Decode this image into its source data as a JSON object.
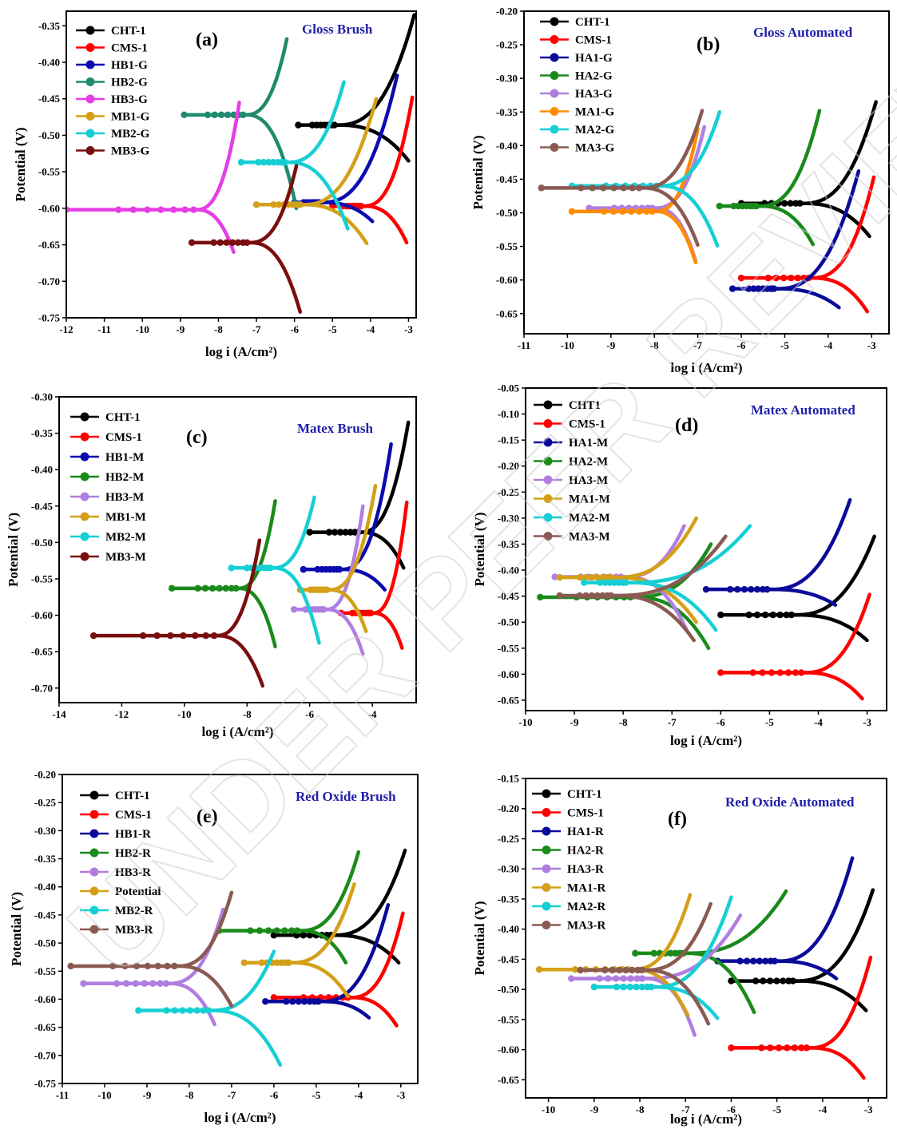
{
  "watermark": "UNDER PEER REVIEW",
  "colors": {
    "CHT": "#000000",
    "CMS": "#ff0000",
    "x1": "#0b0bb0",
    "x2": "#1a8a1a",
    "x3": "#b07ee0",
    "m1": "#d4a017",
    "m2": "#16cfd4",
    "m3": "#7a1f1f",
    "teal": "#1f8a6e",
    "magenta": "#e63ce6",
    "brown": "#8a5a52",
    "orange": "#ff8c00",
    "navy": "#0a0a9a",
    "green2": "#1a8a1a",
    "darkred": "#7a0e0e"
  },
  "chart_data": [
    {
      "id": "a",
      "type": "line",
      "panel_label": "(a)",
      "title": "Gloss Brush",
      "xlabel": "log i (A/cm²)",
      "ylabel": "Potential (V)",
      "xlim": [
        -12,
        -2.8
      ],
      "ylim": [
        -0.75,
        -0.33
      ],
      "xticks": [
        -12,
        -11,
        -10,
        -9,
        -8,
        -7,
        -6,
        -5,
        -4,
        -3
      ],
      "yticks": [
        -0.75,
        -0.7,
        -0.65,
        -0.6,
        -0.55,
        -0.5,
        -0.45,
        -0.4,
        -0.35
      ],
      "series": [
        {
          "name": "CHT-1",
          "color": "#000000",
          "ecorr": -0.486,
          "icorr": -4.9,
          "xstart": -5.9,
          "anode_end": [
            -2.85,
            -0.335
          ],
          "cathode_end": [
            -3.0,
            -0.535
          ]
        },
        {
          "name": "CMS-1",
          "color": "#ff0000",
          "ecorr": -0.597,
          "icorr": -4.2,
          "xstart": -5.0,
          "anode_end": [
            -2.9,
            -0.448
          ],
          "cathode_end": [
            -3.05,
            -0.647
          ]
        },
        {
          "name": "HB1-G",
          "color": "#0b0bb0",
          "ecorr": -0.592,
          "icorr": -5.3,
          "xstart": -6.0,
          "anode_end": [
            -3.3,
            -0.418
          ],
          "cathode_end": [
            -3.95,
            -0.618
          ]
        },
        {
          "name": "HB2-G",
          "color": "#1f8a6e",
          "ecorr": -0.472,
          "icorr": -7.3,
          "xstart": -8.9,
          "anode_end": [
            -6.2,
            -0.368
          ],
          "cathode_end": [
            -5.95,
            -0.6
          ]
        },
        {
          "name": "HB3-G",
          "color": "#e63ce6",
          "ecorr": -0.602,
          "icorr": -8.6,
          "xstart": -12.0,
          "anode_end": [
            -7.45,
            -0.455
          ],
          "cathode_end": [
            -7.6,
            -0.66
          ]
        },
        {
          "name": "MB1-G",
          "color": "#d4a017",
          "ecorr": -0.595,
          "icorr": -5.8,
          "xstart": -7.0,
          "anode_end": [
            -3.85,
            -0.45
          ],
          "cathode_end": [
            -4.1,
            -0.648
          ]
        },
        {
          "name": "MB2-G",
          "color": "#16cfd4",
          "ecorr": -0.537,
          "icorr": -6.2,
          "xstart": -7.4,
          "anode_end": [
            -4.7,
            -0.427
          ],
          "cathode_end": [
            -4.6,
            -0.628
          ]
        },
        {
          "name": "MB3-G",
          "color": "#7a0e0e",
          "ecorr": -0.647,
          "icorr": -7.2,
          "xstart": -8.7,
          "anode_end": [
            -5.95,
            -0.542
          ],
          "cathode_end": [
            -5.85,
            -0.742
          ]
        }
      ]
    },
    {
      "id": "b",
      "type": "line",
      "panel_label": "(b)",
      "title": "Gloss Automated",
      "xlabel": "log i (A/cm²)",
      "ylabel": "Potential (V)",
      "xlim": [
        -11,
        -2.6
      ],
      "ylim": [
        -0.68,
        -0.2
      ],
      "xticks": [
        -11,
        -10,
        -9,
        -8,
        -7,
        -6,
        -5,
        -4,
        -3
      ],
      "yticks": [
        -0.65,
        -0.6,
        -0.55,
        -0.5,
        -0.45,
        -0.4,
        -0.35,
        -0.3,
        -0.25,
        -0.2
      ],
      "series": [
        {
          "name": "CHT-1",
          "color": "#000000",
          "ecorr": -0.486,
          "icorr": -4.6,
          "xstart": -6.0,
          "anode_end": [
            -2.9,
            -0.335
          ],
          "cathode_end": [
            -3.05,
            -0.535
          ]
        },
        {
          "name": "CMS-1",
          "color": "#ff0000",
          "ecorr": -0.597,
          "icorr": -4.4,
          "xstart": -6.0,
          "anode_end": [
            -2.95,
            -0.447
          ],
          "cathode_end": [
            -3.1,
            -0.647
          ]
        },
        {
          "name": "HA1-G",
          "color": "#0a0a9a",
          "ecorr": -0.613,
          "icorr": -5.2,
          "xstart": -6.2,
          "anode_end": [
            -3.3,
            -0.438
          ],
          "cathode_end": [
            -3.75,
            -0.641
          ]
        },
        {
          "name": "HA2-G",
          "color": "#1a8a1a",
          "ecorr": -0.49,
          "icorr": -5.6,
          "xstart": -6.5,
          "anode_end": [
            -4.2,
            -0.348
          ],
          "cathode_end": [
            -4.35,
            -0.547
          ]
        },
        {
          "name": "HA3-G",
          "color": "#b07ee0",
          "ecorr": -0.493,
          "icorr": -8.0,
          "xstart": -9.5,
          "anode_end": [
            -6.85,
            -0.372
          ],
          "cathode_end": [
            -7.05,
            -0.572
          ]
        },
        {
          "name": "MA1-G",
          "color": "#ff8c00",
          "ecorr": -0.498,
          "icorr": -8.0,
          "xstart": -9.9,
          "anode_end": [
            -7.0,
            -0.375
          ],
          "cathode_end": [
            -7.05,
            -0.574
          ]
        },
        {
          "name": "MA2-G",
          "color": "#16cfd4",
          "ecorr": -0.46,
          "icorr": -7.9,
          "xstart": -9.9,
          "anode_end": [
            -6.5,
            -0.35
          ],
          "cathode_end": [
            -6.55,
            -0.549
          ]
        },
        {
          "name": "MA3-G",
          "color": "#8a5a52",
          "ecorr": -0.463,
          "icorr": -8.3,
          "xstart": -10.6,
          "anode_end": [
            -6.9,
            -0.348
          ],
          "cathode_end": [
            -7.0,
            -0.548
          ]
        }
      ]
    },
    {
      "id": "c",
      "type": "line",
      "panel_label": "(c)",
      "title": "Matex Brush",
      "xlabel": "log i (A/cm²)",
      "ylabel": "Potential (V)",
      "xlim": [
        -14,
        -2.6
      ],
      "ylim": [
        -0.72,
        -0.3
      ],
      "xticks": [
        -14,
        -12,
        -10,
        -8,
        -6,
        -4
      ],
      "yticks": [
        -0.7,
        -0.65,
        -0.6,
        -0.55,
        -0.5,
        -0.45,
        -0.4,
        -0.35,
        -0.3
      ],
      "series": [
        {
          "name": "CHT-1",
          "color": "#000000",
          "ecorr": -0.486,
          "icorr": -4.4,
          "xstart": -6.0,
          "anode_end": [
            -2.85,
            -0.335
          ],
          "cathode_end": [
            -3.0,
            -0.535
          ]
        },
        {
          "name": "CMS-1",
          "color": "#ff0000",
          "ecorr": -0.597,
          "icorr": -4.0,
          "xstart": -5.0,
          "anode_end": [
            -2.9,
            -0.445
          ],
          "cathode_end": [
            -3.05,
            -0.645
          ]
        },
        {
          "name": "HB1-M",
          "color": "#0b0bb0",
          "ecorr": -0.537,
          "icorr": -5.0,
          "xstart": -6.2,
          "anode_end": [
            -3.4,
            -0.365
          ],
          "cathode_end": [
            -3.6,
            -0.565
          ]
        },
        {
          "name": "HB2-M",
          "color": "#1a8a1a",
          "ecorr": -0.563,
          "icorr": -8.3,
          "xstart": -10.4,
          "anode_end": [
            -7.1,
            -0.443
          ],
          "cathode_end": [
            -7.1,
            -0.643
          ]
        },
        {
          "name": "HB3-M",
          "color": "#b07ee0",
          "ecorr": -0.592,
          "icorr": -5.5,
          "xstart": -6.5,
          "anode_end": [
            -4.3,
            -0.45
          ],
          "cathode_end": [
            -4.3,
            -0.653
          ]
        },
        {
          "name": "MB1-M",
          "color": "#d4a017",
          "ecorr": -0.565,
          "icorr": -5.4,
          "xstart": -6.3,
          "anode_end": [
            -3.9,
            -0.422
          ],
          "cathode_end": [
            -4.2,
            -0.622
          ]
        },
        {
          "name": "MB2-M",
          "color": "#16cfd4",
          "ecorr": -0.535,
          "icorr": -7.2,
          "xstart": -8.5,
          "anode_end": [
            -5.85,
            -0.438
          ],
          "cathode_end": [
            -5.7,
            -0.638
          ]
        },
        {
          "name": "MB3-M",
          "color": "#7a0e0e",
          "ecorr": -0.628,
          "icorr": -9.0,
          "xstart": -12.9,
          "anode_end": [
            -7.6,
            -0.497
          ],
          "cathode_end": [
            -7.5,
            -0.697
          ]
        }
      ]
    },
    {
      "id": "d",
      "type": "line",
      "panel_label": "(d)",
      "title": "Matex Automated",
      "xlabel": "log i (A/cm²)",
      "ylabel": "Potential (V)",
      "xlim": [
        -10,
        -2.6
      ],
      "ylim": [
        -0.67,
        -0.05
      ],
      "xticks": [
        -10,
        -9,
        -8,
        -7,
        -6,
        -5,
        -4,
        -3
      ],
      "yticks": [
        -0.65,
        -0.6,
        -0.55,
        -0.5,
        -0.45,
        -0.4,
        -0.35,
        -0.3,
        -0.25,
        -0.2,
        -0.15,
        -0.1,
        -0.05
      ],
      "series": [
        {
          "name": "CHT1",
          "color": "#000000",
          "ecorr": -0.486,
          "icorr": -4.5,
          "xstart": -6.0,
          "anode_end": [
            -2.85,
            -0.335
          ],
          "cathode_end": [
            -3.0,
            -0.535
          ]
        },
        {
          "name": "CMS-1",
          "color": "#ff0000",
          "ecorr": -0.597,
          "icorr": -4.3,
          "xstart": -6.0,
          "anode_end": [
            -2.95,
            -0.447
          ],
          "cathode_end": [
            -3.1,
            -0.647
          ]
        },
        {
          "name": "HA1-M",
          "color": "#0a0a9a",
          "ecorr": -0.437,
          "icorr": -5.0,
          "xstart": -6.3,
          "anode_end": [
            -3.35,
            -0.265
          ],
          "cathode_end": [
            -3.65,
            -0.467
          ]
        },
        {
          "name": "HA2-M",
          "color": "#1a8a1a",
          "ecorr": -0.452,
          "icorr": -7.8,
          "xstart": -9.7,
          "anode_end": [
            -6.2,
            -0.35
          ],
          "cathode_end": [
            -6.25,
            -0.55
          ]
        },
        {
          "name": "HA3-M",
          "color": "#b07ee0",
          "ecorr": -0.413,
          "icorr": -8.0,
          "xstart": -9.4,
          "anode_end": [
            -6.75,
            -0.315
          ],
          "cathode_end": [
            -6.7,
            -0.515
          ]
        },
        {
          "name": "MA1-M",
          "color": "#d4a017",
          "ecorr": -0.414,
          "icorr": -8.2,
          "xstart": -9.3,
          "anode_end": [
            -6.5,
            -0.3
          ],
          "cathode_end": [
            -6.5,
            -0.5
          ]
        },
        {
          "name": "MA2-M",
          "color": "#16cfd4",
          "ecorr": -0.424,
          "icorr": -7.9,
          "xstart": -8.8,
          "anode_end": [
            -5.4,
            -0.315
          ],
          "cathode_end": [
            -6.1,
            -0.515
          ]
        },
        {
          "name": "MA3-M",
          "color": "#8a5a52",
          "ecorr": -0.449,
          "icorr": -8.2,
          "xstart": -9.3,
          "anode_end": [
            -5.9,
            -0.335
          ],
          "cathode_end": [
            -6.55,
            -0.535
          ]
        }
      ]
    },
    {
      "id": "e",
      "type": "line",
      "panel_label": "(e)",
      "title": "Red Oxide Brush",
      "xlabel": "log i (A/cm²)",
      "ylabel": "Potential (V)",
      "xlim": [
        -11,
        -2.6
      ],
      "ylim": [
        -0.75,
        -0.2
      ],
      "xticks": [
        -11,
        -10,
        -9,
        -8,
        -7,
        -6,
        -5,
        -4,
        -3
      ],
      "yticks": [
        -0.75,
        -0.7,
        -0.65,
        -0.6,
        -0.55,
        -0.5,
        -0.45,
        -0.4,
        -0.35,
        -0.3,
        -0.25,
        -0.2
      ],
      "series": [
        {
          "name": "CHT-1",
          "color": "#000000",
          "ecorr": -0.486,
          "icorr": -4.6,
          "xstart": -6.0,
          "anode_end": [
            -2.9,
            -0.335
          ],
          "cathode_end": [
            -3.05,
            -0.535
          ]
        },
        {
          "name": "CMS-1",
          "color": "#ff0000",
          "ecorr": -0.597,
          "icorr": -4.2,
          "xstart": -6.0,
          "anode_end": [
            -2.95,
            -0.447
          ],
          "cathode_end": [
            -3.1,
            -0.647
          ]
        },
        {
          "name": "HB1-R",
          "color": "#0a0a9a",
          "ecorr": -0.604,
          "icorr": -4.9,
          "xstart": -6.2,
          "anode_end": [
            -3.3,
            -0.432
          ],
          "cathode_end": [
            -3.75,
            -0.633
          ]
        },
        {
          "name": "HB2-R",
          "color": "#1a8a1a",
          "ecorr": -0.478,
          "icorr": -5.4,
          "xstart": -7.3,
          "anode_end": [
            -4.0,
            -0.338
          ],
          "cathode_end": [
            -4.3,
            -0.535
          ]
        },
        {
          "name": "HB3-R",
          "color": "#b07ee0",
          "ecorr": -0.572,
          "icorr": -8.5,
          "xstart": -10.5,
          "anode_end": [
            -7.2,
            -0.44
          ],
          "cathode_end": [
            -7.4,
            -0.645
          ]
        },
        {
          "name": "Potential",
          "color": "#d4a017",
          "ecorr": -0.535,
          "icorr": -5.6,
          "xstart": -6.7,
          "anode_end": [
            -4.1,
            -0.395
          ],
          "cathode_end": [
            -4.25,
            -0.595
          ]
        },
        {
          "name": "MB2-R",
          "color": "#16cfd4",
          "ecorr": -0.62,
          "icorr": -7.5,
          "xstart": -9.2,
          "anode_end": [
            -6.0,
            -0.515
          ],
          "cathode_end": [
            -5.85,
            -0.717
          ]
        },
        {
          "name": "MB3-R",
          "color": "#8a5a52",
          "ecorr": -0.541,
          "icorr": -8.3,
          "xstart": -10.8,
          "anode_end": [
            -7.0,
            -0.41
          ],
          "cathode_end": [
            -7.0,
            -0.612
          ]
        }
      ]
    },
    {
      "id": "f",
      "type": "line",
      "panel_label": "(f)",
      "title": "Red Oxide Automated",
      "xlabel": "log i (A/cm²)",
      "ylabel": "Potential (V)",
      "xlim": [
        -10.5,
        -2.6
      ],
      "ylim": [
        -0.68,
        -0.15
      ],
      "xticks": [
        -10,
        -9,
        -8,
        -7,
        -6,
        -5,
        -4,
        -3
      ],
      "yticks": [
        -0.65,
        -0.6,
        -0.55,
        -0.5,
        -0.45,
        -0.4,
        -0.35,
        -0.3,
        -0.25,
        -0.2,
        -0.15
      ],
      "series": [
        {
          "name": "CHT-1",
          "color": "#000000",
          "ecorr": -0.486,
          "icorr": -4.6,
          "xstart": -6.0,
          "anode_end": [
            -2.9,
            -0.335
          ],
          "cathode_end": [
            -3.05,
            -0.535
          ]
        },
        {
          "name": "CMS-1",
          "color": "#ff0000",
          "ecorr": -0.597,
          "icorr": -4.3,
          "xstart": -6.0,
          "anode_end": [
            -2.95,
            -0.447
          ],
          "cathode_end": [
            -3.1,
            -0.647
          ]
        },
        {
          "name": "HA1-R",
          "color": "#0a0a9a",
          "ecorr": -0.453,
          "icorr": -5.0,
          "xstart": -6.3,
          "anode_end": [
            -3.35,
            -0.282
          ],
          "cathode_end": [
            -3.7,
            -0.482
          ]
        },
        {
          "name": "HA2-R",
          "color": "#1a8a1a",
          "ecorr": -0.44,
          "icorr": -7.0,
          "xstart": -8.1,
          "anode_end": [
            -4.8,
            -0.337
          ],
          "cathode_end": [
            -5.5,
            -0.538
          ]
        },
        {
          "name": "HA3-R",
          "color": "#b07ee0",
          "ecorr": -0.482,
          "icorr": -7.9,
          "xstart": -9.5,
          "anode_end": [
            -5.8,
            -0.377
          ],
          "cathode_end": [
            -6.8,
            -0.576
          ]
        },
        {
          "name": "MA1-R",
          "color": "#d4a017",
          "ecorr": -0.467,
          "icorr": -8.2,
          "xstart": -10.2,
          "anode_end": [
            -6.9,
            -0.343
          ],
          "cathode_end": [
            -6.95,
            -0.543
          ]
        },
        {
          "name": "MA2-R",
          "color": "#16cfd4",
          "ecorr": -0.496,
          "icorr": -7.7,
          "xstart": -9.0,
          "anode_end": [
            -6.0,
            -0.347
          ],
          "cathode_end": [
            -6.3,
            -0.548
          ]
        },
        {
          "name": "MA3-R",
          "color": "#8a5a52",
          "ecorr": -0.468,
          "icorr": -7.9,
          "xstart": -9.3,
          "anode_end": [
            -6.45,
            -0.358
          ],
          "cathode_end": [
            -6.5,
            -0.557
          ]
        }
      ]
    }
  ]
}
